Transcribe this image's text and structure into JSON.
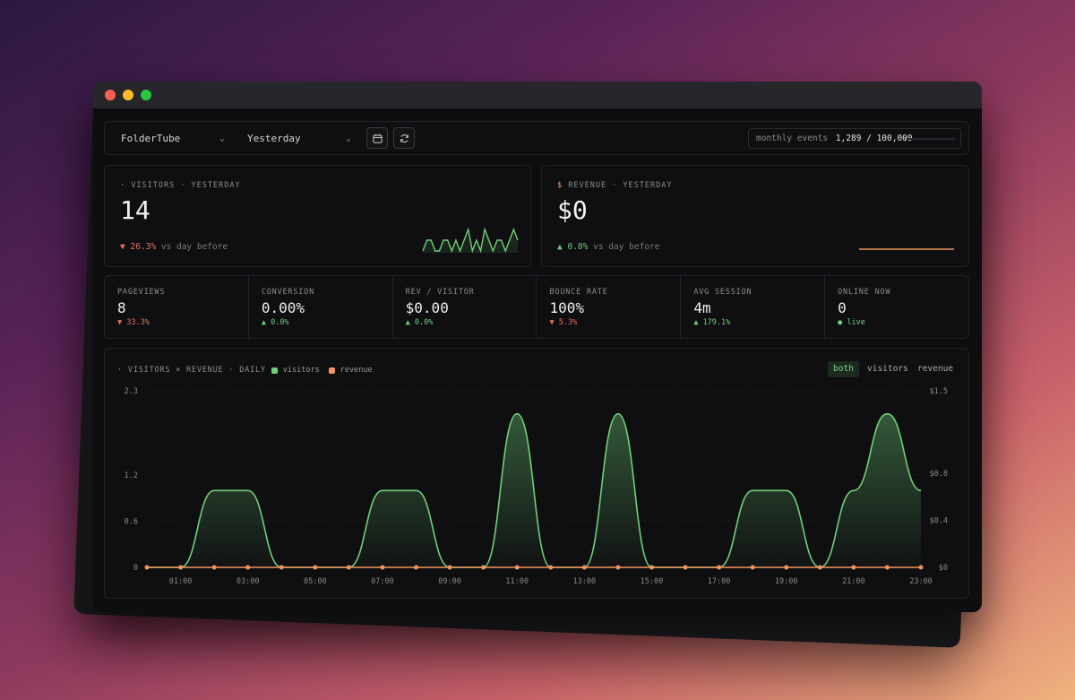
{
  "toolbar": {
    "project": "FolderTube",
    "range": "Yesterday",
    "quota_label": "monthly events",
    "quota_value": "1,289 / 100,000",
    "quota_fraction": 0.0129
  },
  "visitors_card": {
    "label": "VISITORS · YESTERDAY",
    "value": "14",
    "delta": "26.3%",
    "delta_suffix": "vs day before",
    "sparkline": [
      0,
      1,
      1,
      0,
      0,
      1,
      1,
      0,
      1,
      0,
      1,
      2,
      0,
      1,
      0,
      2,
      1,
      0,
      1,
      1,
      0,
      1,
      2,
      1
    ]
  },
  "revenue_card": {
    "label": "REVENUE · YESTERDAY",
    "value": "$0",
    "delta": "0.0%",
    "delta_suffix": "vs day before"
  },
  "metrics": [
    {
      "label": "PAGEVIEWS",
      "value": "8",
      "delta": "33.3%",
      "dir": "down"
    },
    {
      "label": "CONVERSION",
      "value": "0.00%",
      "delta": "0.0%",
      "dir": "up"
    },
    {
      "label": "REV / VISITOR",
      "value": "$0.00",
      "delta": "0.0%",
      "dir": "up"
    },
    {
      "label": "BOUNCE RATE",
      "value": "100%",
      "delta": "5.3%",
      "dir": "down"
    },
    {
      "label": "AVG SESSION",
      "value": "4m",
      "delta": "179.1%",
      "dir": "up"
    },
    {
      "label": "ONLINE NOW",
      "value": "0",
      "delta": "live",
      "dir": "live"
    }
  ],
  "chart": {
    "title": "VISITORS × REVENUE · DAILY",
    "legend_visitors": "visitors",
    "legend_revenue": "revenue",
    "toggle_both": "both",
    "toggle_visitors": "visitors",
    "toggle_revenue": "revenue"
  },
  "chart_data": {
    "type": "area",
    "x": [
      "00:00",
      "01:00",
      "02:00",
      "03:00",
      "04:00",
      "05:00",
      "06:00",
      "07:00",
      "08:00",
      "09:00",
      "10:00",
      "11:00",
      "12:00",
      "13:00",
      "14:00",
      "15:00",
      "16:00",
      "17:00",
      "18:00",
      "19:00",
      "20:00",
      "21:00",
      "22:00",
      "23:00"
    ],
    "x_tick_labels": [
      "01:00",
      "03:00",
      "05:00",
      "07:00",
      "09:00",
      "11:00",
      "13:00",
      "15:00",
      "17:00",
      "19:00",
      "21:00",
      "23:00"
    ],
    "series": [
      {
        "name": "visitors",
        "axis": "left",
        "color": "#6fd07a",
        "values": [
          0,
          0,
          1,
          1,
          0,
          0,
          0,
          1,
          1,
          0,
          0,
          2,
          0,
          0,
          2,
          0,
          0,
          0,
          1,
          1,
          0,
          1,
          2,
          1
        ]
      },
      {
        "name": "revenue",
        "axis": "right",
        "color": "#f2965f",
        "values": [
          0,
          0,
          0,
          0,
          0,
          0,
          0,
          0,
          0,
          0,
          0,
          0,
          0,
          0,
          0,
          0,
          0,
          0,
          0,
          0,
          0,
          0,
          0,
          0
        ]
      }
    ],
    "y_left_ticks": [
      "0",
      "0.6",
      "1.2",
      "2.3"
    ],
    "y_left_tick_values": [
      0,
      0.6,
      1.2,
      2.3
    ],
    "y_right_ticks": [
      "$0",
      "$0.4",
      "$0.8",
      "$1.5"
    ],
    "y_right_tick_values": [
      0,
      0.4,
      0.8,
      1.5
    ],
    "ylim_left": [
      0,
      2.3
    ],
    "ylim_right": [
      0,
      1.5
    ]
  },
  "colors": {
    "accent_green": "#6fd07a",
    "accent_orange": "#f2965f",
    "down_red": "#f0705f"
  }
}
